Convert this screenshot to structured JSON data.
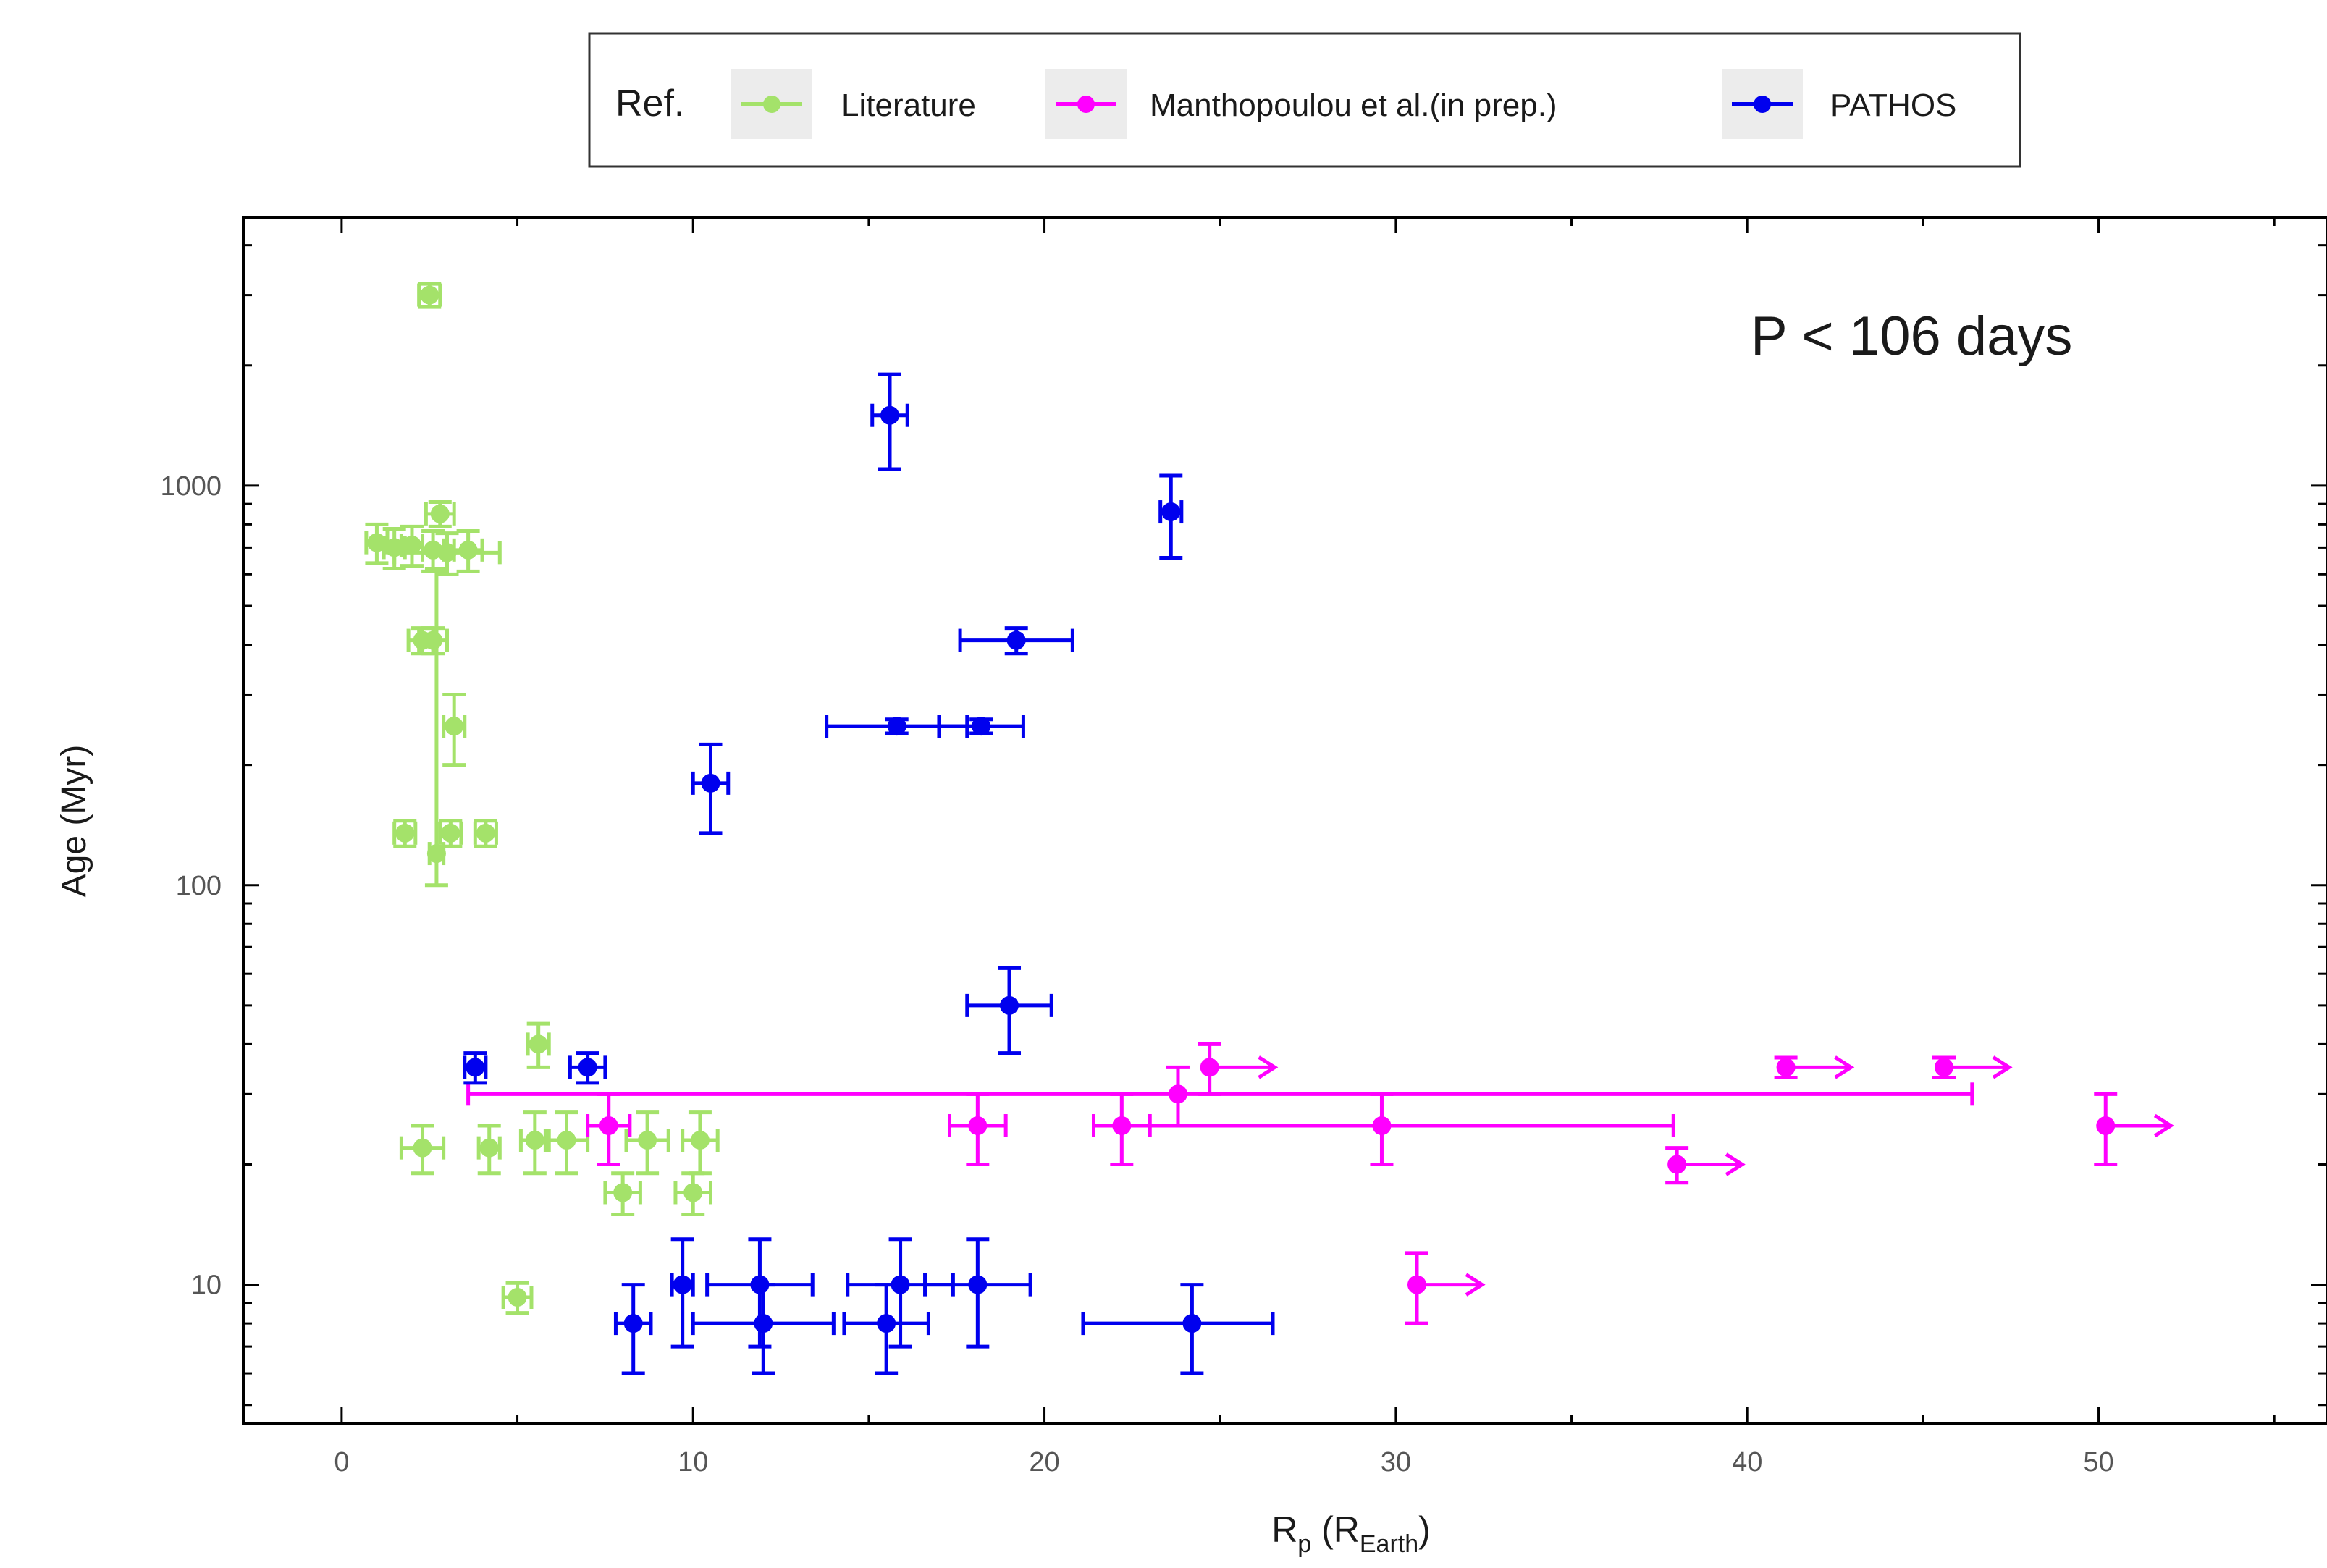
{
  "chart_data": {
    "type": "scatter",
    "title": "",
    "xlabel_main": "R",
    "xlabel_sub": "p",
    "xlabel_unit_open": " (R",
    "xlabel_unit_sub": "Earth",
    "xlabel_unit_close": ")",
    "ylabel": "Age (Myr)",
    "yscale": "log",
    "xlim": [
      -2.8,
      56.5
    ],
    "ylim": [
      4.5,
      4700
    ],
    "x_ticks": [
      0,
      10,
      20,
      30,
      40,
      50
    ],
    "y_ticks": [
      10,
      100,
      1000
    ],
    "annotation": "P < 106 days",
    "legend": {
      "title": "Ref.",
      "placement": "top-center",
      "entries": [
        "Literature",
        "Manthopoulou et al.(in prep.)",
        "PATHOS"
      ]
    },
    "colors": {
      "Literature": "#a4e26a",
      "Manthopoulou et al.(in prep.)": "#ff00ff",
      "PATHOS": "#0000ee"
    },
    "series": [
      {
        "name": "Literature",
        "points": [
          {
            "x": 2.5,
            "y": 3000,
            "xerr": 0.3,
            "yerr": [
              200,
              200
            ]
          },
          {
            "x": 1.0,
            "y": 720,
            "xerr": 0.3,
            "yerr": [
              80,
              80
            ]
          },
          {
            "x": 1.5,
            "y": 700,
            "xerr": 0.3,
            "yerr": [
              80,
              80
            ]
          },
          {
            "x": 2.0,
            "y": 710,
            "xerr": 0.3,
            "yerr": [
              80,
              80
            ]
          },
          {
            "x": 2.6,
            "y": 690,
            "xerr": 0.3,
            "yerr": [
              80,
              80
            ]
          },
          {
            "x": 2.8,
            "y": 850,
            "xerr": 0.4,
            "yerr": [
              60,
              60
            ]
          },
          {
            "x": 3.0,
            "y": 680,
            "xerr": 1.5,
            "yerr": [
              80,
              80
            ]
          },
          {
            "x": 3.6,
            "y": 690,
            "xerr": 0.4,
            "yerr": [
              80,
              80
            ]
          },
          {
            "x": 2.3,
            "y": 410,
            "xerr": 0.4,
            "yerr": [
              30,
              30
            ]
          },
          {
            "x": 2.6,
            "y": 410,
            "xerr": 0.4,
            "yerr": [
              30,
              30
            ]
          },
          {
            "x": 3.2,
            "y": 250,
            "xerr": 0.3,
            "yerr": [
              50,
              50
            ]
          },
          {
            "x": 1.8,
            "y": 135,
            "xerr": 0.3,
            "yerr": [
              10,
              10
            ]
          },
          {
            "x": 2.7,
            "y": 120,
            "xerr": 0.2,
            "yerr": [
              20,
              500
            ]
          },
          {
            "x": 3.1,
            "y": 135,
            "xerr": 0.3,
            "yerr": [
              10,
              10
            ]
          },
          {
            "x": 4.1,
            "y": 135,
            "xerr": 0.3,
            "yerr": [
              10,
              10
            ]
          },
          {
            "x": 5.6,
            "y": 40,
            "xerr": 0.3,
            "yerr": [
              5,
              5
            ]
          },
          {
            "x": 2.3,
            "y": 22,
            "xerr": 0.6,
            "yerr": [
              3,
              3
            ]
          },
          {
            "x": 4.2,
            "y": 22,
            "xerr": 0.3,
            "yerr": [
              3,
              3
            ]
          },
          {
            "x": 5.5,
            "y": 23,
            "xerr": 0.4,
            "yerr": [
              4,
              4
            ]
          },
          {
            "x": 6.4,
            "y": 23,
            "xerr": 0.6,
            "yerr": [
              4,
              4
            ]
          },
          {
            "x": 8.7,
            "y": 23,
            "xerr": 0.6,
            "yerr": [
              4,
              4
            ]
          },
          {
            "x": 10.2,
            "y": 23,
            "xerr": 0.5,
            "yerr": [
              4,
              4
            ]
          },
          {
            "x": 8.0,
            "y": 17,
            "xerr": 0.5,
            "yerr": [
              2,
              2
            ]
          },
          {
            "x": 10.0,
            "y": 17,
            "xerr": 0.5,
            "yerr": [
              2,
              2
            ]
          },
          {
            "x": 5.0,
            "y": 9.3,
            "xerr": 0.4,
            "yerr": [
              0.8,
              0.8
            ]
          }
        ]
      },
      {
        "name": "Manthopoulou et al.(in prep.)",
        "points": [
          {
            "x": 7.6,
            "y": 25,
            "xerr": 0.6,
            "yerr": [
              5,
              5
            ]
          },
          {
            "x": 18.1,
            "y": 25,
            "xerr": 0.8,
            "yerr": [
              5,
              5
            ]
          },
          {
            "x": 22.2,
            "y": 25,
            "xerr": 0.8,
            "yerr": [
              5,
              5
            ]
          },
          {
            "x": 23.8,
            "y": 30,
            "xerr": [
              20.2,
              22.6
            ],
            "yerr": [
              5,
              5
            ]
          },
          {
            "x": 24.7,
            "y": 35,
            "xerr": 0,
            "yerr": [
              5,
              5
            ],
            "lower_limit": true
          },
          {
            "x": 29.6,
            "y": 25,
            "xerr": [
              6.6,
              8.3
            ],
            "yerr": [
              5,
              5
            ]
          },
          {
            "x": 38.0,
            "y": 20,
            "xerr": 0,
            "yerr": [
              2,
              2
            ],
            "lower_limit": true
          },
          {
            "x": 41.1,
            "y": 35,
            "xerr": 0,
            "yerr": [
              2,
              2
            ],
            "lower_limit": true
          },
          {
            "x": 45.6,
            "y": 35,
            "xerr": 0,
            "yerr": [
              2,
              2
            ],
            "lower_limit": true
          },
          {
            "x": 50.2,
            "y": 25,
            "xerr": 0,
            "yerr": [
              5,
              5
            ],
            "lower_limit": true
          },
          {
            "x": 30.6,
            "y": 10,
            "xerr": 0,
            "yerr": [
              2,
              2
            ],
            "lower_limit": true
          }
        ]
      },
      {
        "name": "PATHOS",
        "points": [
          {
            "x": 15.6,
            "y": 1500,
            "xerr": 0.5,
            "yerr": [
              400,
              400
            ]
          },
          {
            "x": 23.6,
            "y": 860,
            "xerr": 0.3,
            "yerr": [
              200,
              200
            ]
          },
          {
            "x": 19.2,
            "y": 410,
            "xerr": 1.6,
            "yerr": [
              30,
              30
            ]
          },
          {
            "x": 15.8,
            "y": 250,
            "xerr": 2.0,
            "yerr": [
              10,
              10
            ]
          },
          {
            "x": 18.2,
            "y": 250,
            "xerr": 1.2,
            "yerr": [
              10,
              10
            ]
          },
          {
            "x": 10.5,
            "y": 180,
            "xerr": 0.5,
            "yerr": [
              45,
              45
            ]
          },
          {
            "x": 19.0,
            "y": 50,
            "xerr": 1.2,
            "yerr": [
              12,
              12
            ]
          },
          {
            "x": 3.8,
            "y": 35,
            "xerr": 0.3,
            "yerr": [
              3,
              3
            ]
          },
          {
            "x": 7.0,
            "y": 35,
            "xerr": 0.5,
            "yerr": [
              3,
              3
            ]
          },
          {
            "x": 9.7,
            "y": 10,
            "xerr": 0.3,
            "yerr": [
              3,
              3
            ]
          },
          {
            "x": 11.9,
            "y": 10,
            "xerr": 1.5,
            "yerr": [
              3,
              3
            ]
          },
          {
            "x": 15.9,
            "y": 10,
            "xerr": 1.5,
            "yerr": [
              3,
              3
            ]
          },
          {
            "x": 18.1,
            "y": 10,
            "xerr": 1.5,
            "yerr": [
              3,
              3
            ]
          },
          {
            "x": 8.3,
            "y": 8,
            "xerr": 0.5,
            "yerr": [
              2,
              2
            ]
          },
          {
            "x": 12.0,
            "y": 8,
            "xerr": 2.0,
            "yerr": [
              2,
              2
            ]
          },
          {
            "x": 15.5,
            "y": 8,
            "xerr": 1.2,
            "yerr": [
              2,
              2
            ]
          },
          {
            "x": 24.2,
            "y": 8,
            "xerr": [
              3.1,
              2.3
            ],
            "yerr": [
              2,
              2
            ]
          }
        ]
      }
    ]
  }
}
